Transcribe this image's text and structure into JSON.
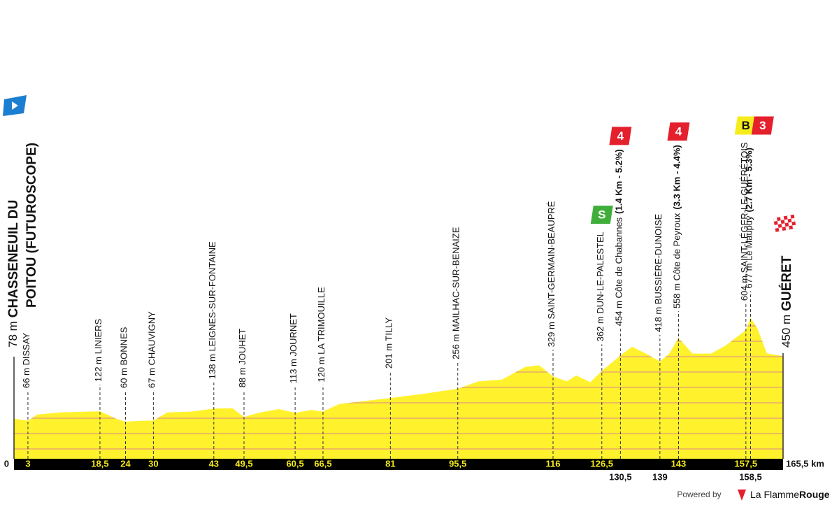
{
  "chart_data": {
    "type": "area",
    "color": "#fff22d",
    "x": [
      0,
      3,
      5,
      10,
      18.5,
      22,
      24,
      27,
      30,
      33,
      38,
      43,
      47,
      49.5,
      53,
      57,
      60.5,
      64,
      66.5,
      70,
      76,
      81,
      88,
      95.5,
      100,
      105,
      110,
      113,
      116,
      119,
      121,
      124,
      126.5,
      130.5,
      133,
      136,
      139,
      141,
      143,
      146,
      150,
      153,
      157.5,
      158.5,
      160,
      162,
      165.5
    ],
    "values": [
      78,
      66,
      103,
      115,
      122,
      78,
      60,
      65,
      67,
      115,
      120,
      138,
      140,
      88,
      115,
      135,
      113,
      130,
      120,
      165,
      185,
      201,
      225,
      256,
      300,
      310,
      385,
      395,
      329,
      300,
      335,
      295,
      362,
      454,
      505,
      465,
      418,
      465,
      558,
      465,
      465,
      510,
      604,
      677,
      613,
      466,
      450
    ],
    "xlim": [
      0,
      165.5
    ],
    "ylim": [
      -160,
      700
    ],
    "xticks": [
      0,
      3,
      {
        "value": 18.5,
        "label": "18,5"
      },
      24,
      30,
      43,
      {
        "value": 49.5,
        "label": "49,5"
      },
      {
        "value": 60.5,
        "label": "60,5"
      },
      {
        "value": 66.5,
        "label": "66,5"
      },
      81,
      {
        "value": 95.5,
        "label": "95,5"
      },
      116,
      {
        "value": 126.5,
        "label": "126,5"
      },
      {
        "value": 130.5,
        "label": "130,5"
      },
      139,
      143,
      {
        "value": 157.5,
        "label": "157,5"
      },
      {
        "value": 158.5,
        "label": "158,5"
      },
      {
        "value": 165.5,
        "label": "165,5 km"
      }
    ],
    "start": {
      "altitude": "78 m",
      "name_lines": [
        "CHASSENEUIL DU",
        "POITOU (FUTUROSCOPE)"
      ]
    },
    "finish": {
      "altitude": "450 m",
      "name": "GUÉRET"
    },
    "waypoints": [
      {
        "km": 3,
        "label": "66 m DISSAY"
      },
      {
        "km": 18.5,
        "label": "122 m LINIERS"
      },
      {
        "km": 24,
        "label": "60 m BONNES"
      },
      {
        "km": 30,
        "label": "67 m CHAUVIGNY"
      },
      {
        "km": 43,
        "label": "138 m LEIGNES-SUR-FONTAINE"
      },
      {
        "km": 49.5,
        "label": "88 m JOUHET"
      },
      {
        "km": 60.5,
        "label": "113 m JOURNET"
      },
      {
        "km": 66.5,
        "label": "120 m LA TRIMOUILLE"
      },
      {
        "km": 81,
        "label": "201 m TILLY"
      },
      {
        "km": 95.5,
        "label": "256 m MAILHAC-SUR-BENAIZE"
      },
      {
        "km": 116,
        "label": "329 m SAINT-GERMAIN-BEAUPRÉ"
      },
      {
        "km": 126.5,
        "label": "362 m DUN-LE-PALESTEL",
        "badge": {
          "text": "S",
          "color": "#3fae3a"
        }
      },
      {
        "km": 130.5,
        "label": "454 m Côte de Chabannes",
        "detail": "(1.4 Km - 5.2%)",
        "badge": {
          "text": "4",
          "color": "#e4202d"
        }
      },
      {
        "km": 139,
        "label": "418 m BUSSIÈRE-DUNOISE"
      },
      {
        "km": 143,
        "label": "558 m Côte de Peyroux",
        "detail": "(3.3 Km - 4.4%)",
        "badge": {
          "text": "4",
          "color": "#e4202d"
        }
      },
      {
        "km": 157.5,
        "label": "604 m SAINT-LÉGER-LE-GUÉRÉTOIS",
        "badge": {
          "text": "B",
          "color": "#f6ec1c"
        }
      },
      {
        "km": 158.5,
        "label": "677 m Le Maupuy",
        "detail": "(2.7 Km - 5.3%)",
        "badge": {
          "text": "3",
          "color": "#e4202d"
        }
      }
    ]
  },
  "footer": {
    "powered_by": "Powered by",
    "brand": "La Flamme",
    "brand_bold": "Rouge"
  }
}
